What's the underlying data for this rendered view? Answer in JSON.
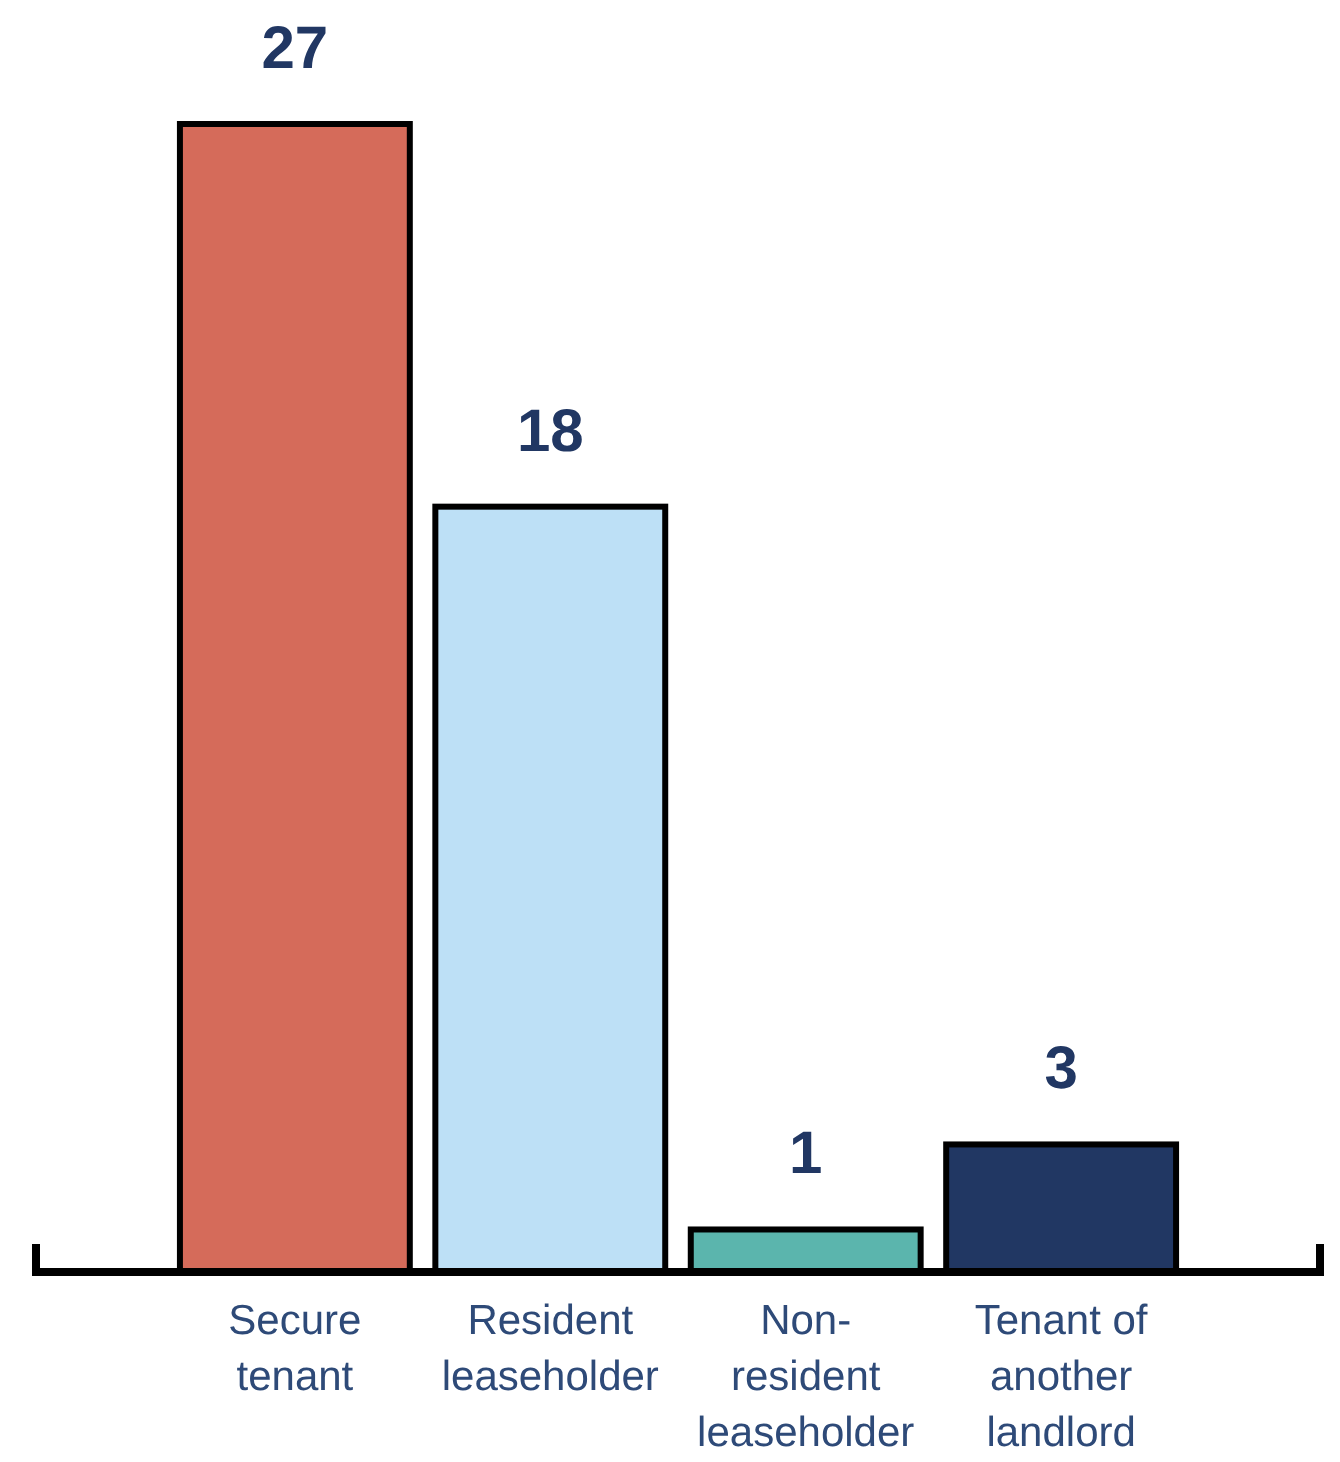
{
  "chart_data": {
    "type": "bar",
    "categories": [
      "Secure tenant",
      "Resident leaseholder",
      "Non-resident leaseholder",
      "Tenant of another landlord"
    ],
    "values": [
      27,
      18,
      1,
      3
    ],
    "colors": [
      "#d56b5a",
      "#bde0f6",
      "#5bb5ad",
      "#213763"
    ],
    "data_labels": true
  }
}
